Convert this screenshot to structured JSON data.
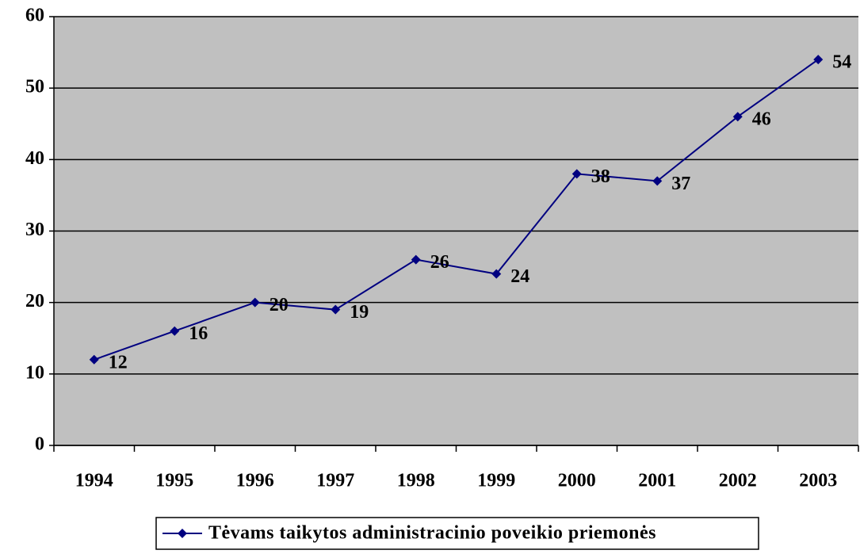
{
  "chart_data": {
    "type": "line",
    "categories": [
      "1994",
      "1995",
      "1996",
      "1997",
      "1998",
      "1999",
      "2000",
      "2001",
      "2002",
      "2003"
    ],
    "series": [
      {
        "name": "Tėvams taikytos administracinio poveikio priemonės",
        "color": "#000080",
        "values": [
          12,
          16,
          20,
          19,
          26,
          24,
          38,
          37,
          46,
          54
        ]
      }
    ],
    "ylim": [
      0,
      60
    ],
    "yticks": [
      0,
      10,
      20,
      30,
      40,
      50,
      60
    ],
    "grid": true,
    "plot_background": "#c0c0c0",
    "legend": "bottom"
  }
}
